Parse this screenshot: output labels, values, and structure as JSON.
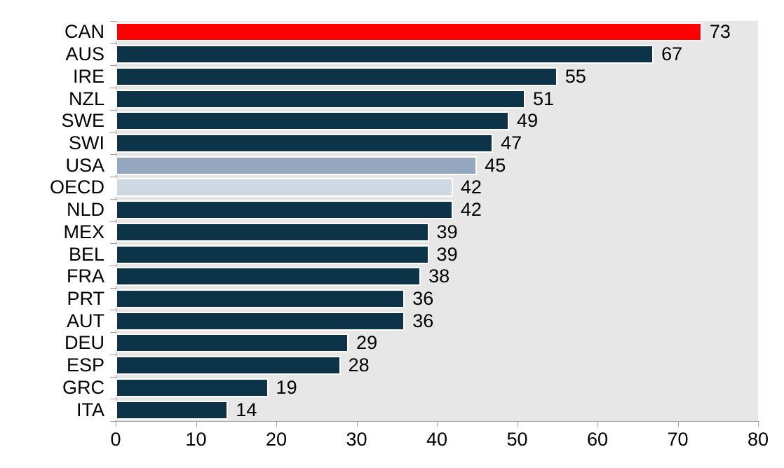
{
  "chart_data": {
    "type": "bar",
    "orientation": "horizontal",
    "title": "",
    "xlabel": "",
    "ylabel": "",
    "xlim": [
      0,
      80
    ],
    "x_ticks": [
      0,
      10,
      20,
      30,
      40,
      50,
      60,
      70,
      80
    ],
    "grid": false,
    "legend": "none",
    "plot_background": "#e7e7e7",
    "bar_border_color": "#ffffff",
    "axis_color": "#a0a0a0",
    "text_color": "#000000",
    "palette": {
      "highlight_red": "#ff0000",
      "navy": "#0d3349",
      "usa_blue_gray": "#95a7bf",
      "oecd_light_blue_gray": "#cfd9e3"
    },
    "categories": [
      "CAN",
      "AUS",
      "IRE",
      "NZL",
      "SWE",
      "SWI",
      "USA",
      "OECD",
      "NLD",
      "MEX",
      "BEL",
      "FRA",
      "PRT",
      "AUT",
      "DEU",
      "ESP",
      "GRC",
      "ITA"
    ],
    "values": [
      73,
      67,
      55,
      51,
      49,
      47,
      45,
      42,
      42,
      39,
      39,
      38,
      36,
      36,
      29,
      28,
      19,
      14
    ],
    "points": [
      {
        "label": "CAN",
        "value": 73,
        "color": "#ff0000"
      },
      {
        "label": "AUS",
        "value": 67,
        "color": "#0d3349"
      },
      {
        "label": "IRE",
        "value": 55,
        "color": "#0d3349"
      },
      {
        "label": "NZL",
        "value": 51,
        "color": "#0d3349"
      },
      {
        "label": "SWE",
        "value": 49,
        "color": "#0d3349"
      },
      {
        "label": "SWI",
        "value": 47,
        "color": "#0d3349"
      },
      {
        "label": "USA",
        "value": 45,
        "color": "#95a7bf"
      },
      {
        "label": "OECD",
        "value": 42,
        "color": "#cfd9e3"
      },
      {
        "label": "NLD",
        "value": 42,
        "color": "#0d3349"
      },
      {
        "label": "MEX",
        "value": 39,
        "color": "#0d3349"
      },
      {
        "label": "BEL",
        "value": 39,
        "color": "#0d3349"
      },
      {
        "label": "FRA",
        "value": 38,
        "color": "#0d3349"
      },
      {
        "label": "PRT",
        "value": 36,
        "color": "#0d3349"
      },
      {
        "label": "AUT",
        "value": 36,
        "color": "#0d3349"
      },
      {
        "label": "DEU",
        "value": 29,
        "color": "#0d3349"
      },
      {
        "label": "ESP",
        "value": 28,
        "color": "#0d3349"
      },
      {
        "label": "GRC",
        "value": 19,
        "color": "#0d3349"
      },
      {
        "label": "ITA",
        "value": 14,
        "color": "#0d3349"
      }
    ]
  }
}
